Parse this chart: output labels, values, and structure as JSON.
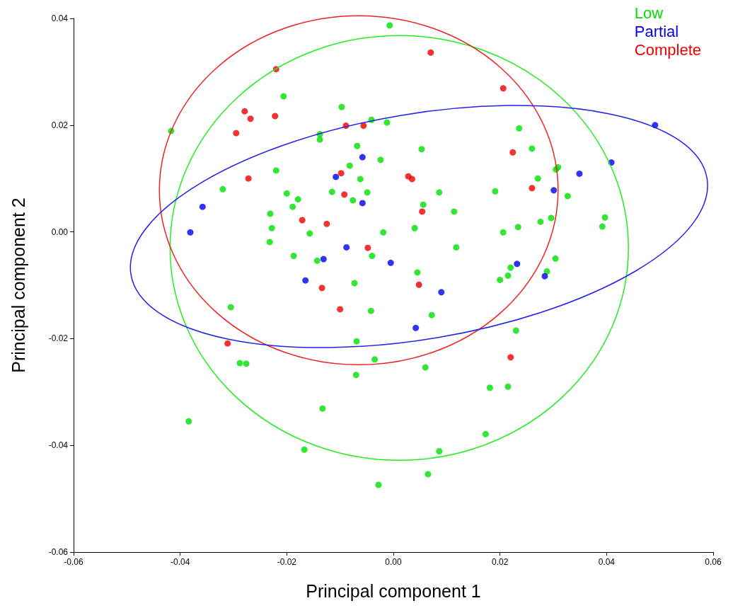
{
  "chart_data": {
    "type": "scatter",
    "xlabel": "Principal component 1",
    "ylabel": "Principal component 2",
    "xlim": [
      -0.06,
      0.06
    ],
    "ylim": [
      -0.06,
      0.04
    ],
    "xticks": [
      {
        "value": -0.06,
        "label": "-0.06"
      },
      {
        "value": -0.04,
        "label": "-0.04"
      },
      {
        "value": -0.02,
        "label": "-0.02"
      },
      {
        "value": 0,
        "label": "0.00"
      },
      {
        "value": 0.02,
        "label": "0.02"
      },
      {
        "value": 0.04,
        "label": "0.04"
      },
      {
        "value": 0.06,
        "label": "0.06"
      }
    ],
    "yticks": [
      {
        "value": -0.06,
        "label": "-0.06"
      },
      {
        "value": -0.04,
        "label": "-0.04"
      },
      {
        "value": -0.02,
        "label": "-0.02"
      },
      {
        "value": 0,
        "label": "0.00"
      },
      {
        "value": 0.02,
        "label": "0.02"
      },
      {
        "value": 0.04,
        "label": "0.04"
      }
    ],
    "grid": false,
    "legend": "top right",
    "marker": "circle",
    "series": [
      {
        "name": "Low",
        "color": "#00e000",
        "x": [
          -0.0417,
          -0.0007,
          -0.0206,
          -0.0097,
          -0.0138,
          -0.0138,
          -0.0041,
          -0.0012,
          -0.0068,
          -0.022,
          -0.032,
          -0.02,
          -0.0179,
          -0.0189,
          -0.0231,
          -0.0228,
          -0.0232,
          -0.0157,
          -0.0115,
          -0.0082,
          -0.0062,
          -0.0076,
          -0.0049,
          -0.0024,
          0.0053,
          0.0056,
          0.004,
          -0.0019,
          0.0086,
          0.0114,
          0.0118,
          0.0045,
          -0.0187,
          -0.0143,
          -0.004,
          -0.0073,
          -0.0042,
          0.0072,
          -0.0305,
          -0.0069,
          -0.0288,
          -0.0276,
          -0.0035,
          -0.007,
          0.006,
          -0.0133,
          -0.0384,
          -0.0167,
          0.0086,
          -0.0028,
          0.0065,
          0.0173,
          0.0181,
          0.0215,
          0.0191,
          0.0236,
          0.026,
          0.0271,
          0.0276,
          0.0234,
          0.0206,
          0.0296,
          0.0305,
          0.0309,
          0.0327,
          0.0304,
          0.0288,
          0.02,
          0.0215,
          0.022,
          0.023,
          0.0397,
          0.0392
        ],
        "values": [
          0.0189,
          0.0387,
          0.0254,
          0.0234,
          0.0183,
          0.0173,
          0.021,
          0.0205,
          0.0161,
          0.0115,
          0.008,
          0.0072,
          0.0061,
          0.0047,
          0.0034,
          0.0007,
          -0.0019,
          -0.0003,
          0.0075,
          0.0124,
          0.0099,
          0.0059,
          0.0074,
          0.0135,
          0.0155,
          0.0051,
          0.0007,
          -0.0001,
          0.0074,
          0.0038,
          -0.0029,
          -0.0076,
          -0.0045,
          -0.0054,
          -0.0045,
          -0.0096,
          -0.0148,
          -0.0156,
          -0.0141,
          -0.0205,
          -0.0246,
          -0.0247,
          -0.0239,
          -0.0268,
          -0.0254,
          -0.0331,
          -0.0355,
          -0.0408,
          -0.0411,
          -0.0474,
          -0.0454,
          -0.0379,
          -0.0292,
          -0.029,
          0.0076,
          0.0194,
          0.0156,
          0.01,
          0.0019,
          0.0009,
          -0.0001,
          0.0026,
          0.0117,
          0.0121,
          0.0067,
          -0.005,
          -0.0074,
          -0.009,
          -0.0082,
          -0.0067,
          -0.0185,
          0.0027,
          0.001
        ]
      },
      {
        "name": "Partial",
        "color": "#0000ee",
        "x": [
          0.0491,
          0.0409,
          0.0349,
          0.0301,
          0.0284,
          0.0232,
          0.009,
          0.0042,
          -0.0005,
          -0.0088,
          -0.0058,
          -0.0108,
          -0.0058,
          -0.0131,
          -0.0165,
          -0.0358,
          -0.0381
        ],
        "values": [
          0.02,
          0.013,
          0.0109,
          0.0078,
          -0.0083,
          -0.006,
          -0.0113,
          -0.018,
          -0.0058,
          -0.0029,
          0.014,
          0.0103,
          0.0054,
          -0.0051,
          -0.0091,
          0.0047,
          -0.0001
        ]
      },
      {
        "name": "Complete",
        "color": "#ee0000",
        "x": [
          0.007,
          -0.022,
          0.0206,
          -0.0279,
          -0.0268,
          -0.0222,
          -0.0295,
          -0.0089,
          -0.0056,
          0.0224,
          -0.0272,
          -0.0098,
          -0.0092,
          0.0028,
          0.0035,
          0.026,
          0.0054,
          -0.0171,
          -0.0125,
          -0.0048,
          -0.0134,
          0.0048,
          -0.01,
          -0.0311,
          0.022
        ],
        "values": [
          0.0336,
          0.0305,
          0.0269,
          0.0226,
          0.0212,
          0.0217,
          0.0185,
          0.0199,
          0.0199,
          0.0149,
          0.01,
          0.011,
          0.007,
          0.0104,
          0.0099,
          0.0082,
          0.0038,
          0.0022,
          0.0015,
          -0.003,
          -0.0105,
          -0.0099,
          -0.0145,
          -0.0209,
          -0.0235
        ]
      }
    ]
  }
}
